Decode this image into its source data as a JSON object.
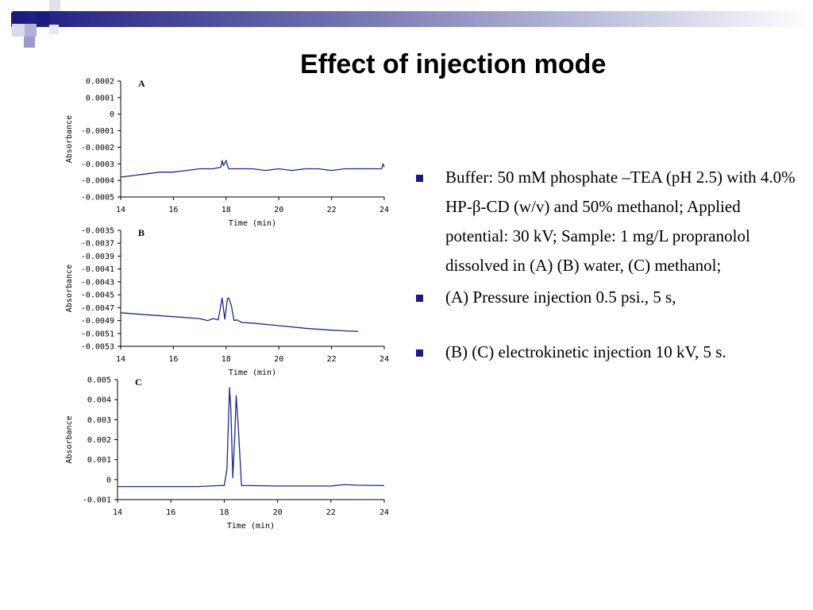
{
  "slide": {
    "title": "Effect of injection mode"
  },
  "bullets": [
    "Buffer: 50 mM phosphate –TEA (pH 2.5) with 4.0% HP-β-CD (w/v) and 50% methanol; Applied potential: 30 kV; Sample: 1 mg/L propranolol dissolved in (A) (B) water, (C) methanol;",
    "(A) Pressure injection 0.5 psi., 5 s,",
    "(B) (C) electrokinetic injection 10 kV, 5 s."
  ],
  "colors": {
    "trace": "#1a2a8c",
    "bullet": "#1a1a80",
    "corner_dark": "#1a1a80",
    "corner_light": "#9a9acc"
  },
  "chart_data": [
    {
      "type": "line",
      "panel_label": "A",
      "xlabel": "Time (min)",
      "ylabel": "Absorbance",
      "xlim": [
        14,
        24
      ],
      "ylim": [
        -0.0005,
        0.0002
      ],
      "xticks": [
        14,
        16,
        18,
        20,
        22,
        24
      ],
      "xtick_labels": [
        "14",
        "16",
        "18",
        "20",
        "22",
        "24"
      ],
      "yticks": [
        0.0002,
        0.0001,
        0,
        -0.0001,
        -0.0002,
        -0.0003,
        -0.0004,
        -0.0005
      ],
      "ytick_labels": [
        "0.0002",
        "0.0001",
        "0",
        "-0.0001",
        "-0.0002",
        "-0.0003",
        "-0.0004",
        "-0.0005"
      ],
      "series": [
        {
          "x": [
            14,
            14.5,
            15,
            15.5,
            16,
            16.5,
            17,
            17.5,
            17.8,
            17.85,
            17.9,
            18.0,
            18.05,
            18.1,
            18.2,
            18.5,
            19,
            19.5,
            20,
            20.5,
            21,
            21.5,
            22,
            22.5,
            23,
            23.5,
            23.9,
            23.95,
            24
          ],
          "y": [
            -0.00038,
            -0.00037,
            -0.00036,
            -0.00035,
            -0.00035,
            -0.00034,
            -0.00033,
            -0.00033,
            -0.00032,
            -0.00028,
            -0.00031,
            -0.00028,
            -0.00031,
            -0.00033,
            -0.00033,
            -0.00033,
            -0.00033,
            -0.00034,
            -0.00033,
            -0.00034,
            -0.00033,
            -0.00033,
            -0.00034,
            -0.00033,
            -0.00033,
            -0.00033,
            -0.00033,
            -0.0003,
            -0.00032
          ]
        }
      ]
    },
    {
      "type": "line",
      "panel_label": "B",
      "xlabel": "Time (min)",
      "ylabel": "Absorbance",
      "xlim": [
        14,
        24
      ],
      "ylim": [
        -0.0053,
        -0.0035
      ],
      "xticks": [
        14,
        16,
        18,
        20,
        22,
        24
      ],
      "xtick_labels": [
        "14",
        "16",
        "18",
        "20",
        "22",
        "24"
      ],
      "yticks": [
        -0.0035,
        -0.0037,
        -0.0039,
        -0.0041,
        -0.0043,
        -0.0045,
        -0.0047,
        -0.0049,
        -0.0051,
        -0.0053
      ],
      "ytick_labels": [
        "-0.0035",
        "-0.0037",
        "-0.0039",
        "-0.0041",
        "-0.0043",
        "-0.0045",
        "-0.0047",
        "-0.0049",
        "-0.0051",
        "-0.0053"
      ],
      "series": [
        {
          "x": [
            14,
            15,
            16,
            17,
            17.3,
            17.5,
            17.7,
            17.85,
            17.95,
            18.05,
            18.1,
            18.2,
            18.3,
            18.4,
            18.6,
            19,
            20,
            21,
            22,
            22.5,
            23
          ],
          "y": [
            -0.00478,
            -0.00481,
            -0.00484,
            -0.00487,
            -0.0049,
            -0.00487,
            -0.00489,
            -0.00455,
            -0.00488,
            -0.00456,
            -0.00455,
            -0.00467,
            -0.0049,
            -0.00489,
            -0.00493,
            -0.00494,
            -0.00498,
            -0.00502,
            -0.00505,
            -0.00506,
            -0.00507
          ]
        }
      ]
    },
    {
      "type": "line",
      "panel_label": "C",
      "xlabel": "Time (min)",
      "ylabel": "Absorbance",
      "xlim": [
        14,
        24
      ],
      "ylim": [
        -0.001,
        0.005
      ],
      "xticks": [
        14,
        16,
        18,
        20,
        22,
        24
      ],
      "xtick_labels": [
        "14",
        "16",
        "18",
        "20",
        "22",
        "24"
      ],
      "yticks": [
        0.005,
        0.004,
        0.003,
        0.002,
        0.001,
        0,
        -0.001
      ],
      "ytick_labels": [
        "0.005",
        "0.004",
        "0.003",
        "0.002",
        "0.001",
        "0",
        "-0.001"
      ],
      "series": [
        {
          "x": [
            14,
            15,
            16,
            17,
            17.8,
            18.0,
            18.1,
            18.2,
            18.25,
            18.32,
            18.4,
            18.45,
            18.52,
            18.65,
            19,
            20,
            21,
            22,
            22.5,
            23,
            24
          ],
          "y": [
            -0.00035,
            -0.00035,
            -0.00035,
            -0.00035,
            -0.0003,
            -0.0003,
            0.0005,
            0.0046,
            0.0035,
            0.0001,
            0.0023,
            0.0042,
            0.0028,
            -0.0003,
            -0.0003,
            -0.00032,
            -0.00032,
            -0.00032,
            -0.00025,
            -0.00028,
            -0.0003
          ]
        }
      ]
    }
  ]
}
